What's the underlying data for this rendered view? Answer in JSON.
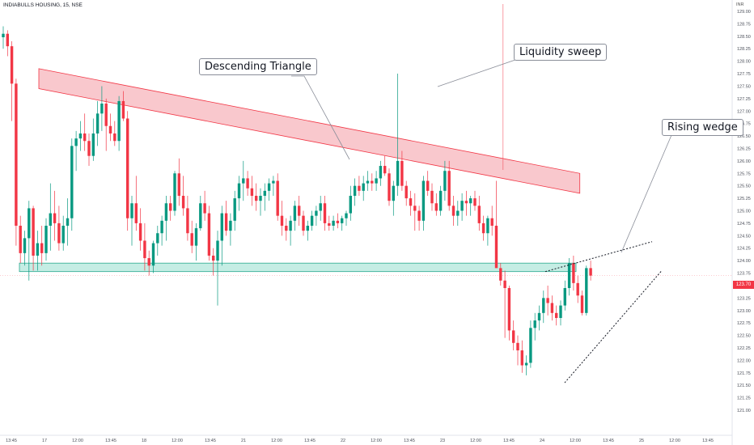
{
  "header": {
    "symbol": "INDIABULLS HOUSING, 15, NSE",
    "currency": "INR"
  },
  "last_price_label": "123.70",
  "annotations": {
    "descending_triangle": "Descending Triangle",
    "liquidity_sweep": "Liquidity sweep",
    "rising_wedge": "Rising wedge"
  },
  "colors": {
    "up": "#089981",
    "down": "#f23645",
    "resistance_fill": "#f7b5bc",
    "support_fill": "#b6e8dd",
    "support_border": "#2aa88f"
  },
  "chart_data": {
    "type": "candlestick",
    "title": "INDIABULLS HOUSING, 15, NSE",
    "ylim": [
      121.0,
      129.0
    ],
    "y_ticks": [
      "129.00",
      "128.75",
      "128.50",
      "128.25",
      "128.00",
      "127.75",
      "127.50",
      "127.25",
      "127.00",
      "126.75",
      "126.50",
      "126.25",
      "126.00",
      "125.75",
      "125.50",
      "125.25",
      "125.00",
      "124.75",
      "124.50",
      "124.25",
      "124.00",
      "123.75",
      "123.50",
      "123.25",
      "123.00",
      "122.75",
      "122.50",
      "122.25",
      "122.00",
      "121.75",
      "121.50",
      "121.25",
      "121.00"
    ],
    "x_ticks": [
      "13:45",
      "17",
      "12:00",
      "13:45",
      "18",
      "12:00",
      "13:45",
      "21",
      "12:00",
      "13:45",
      "22",
      "12:00",
      "13:45",
      "23",
      "12:00",
      "13:45",
      "24",
      "12:00",
      "13:45",
      "25",
      "12:00",
      "13:45"
    ],
    "last_price": 123.7,
    "candles": [
      [
        128.48,
        128.7,
        128.25,
        128.55
      ],
      [
        128.55,
        128.62,
        128.1,
        128.3
      ],
      [
        128.3,
        128.4,
        126.8,
        127.55
      ],
      [
        127.55,
        127.65,
        124.3,
        124.7
      ],
      [
        124.7,
        124.9,
        123.95,
        124.15
      ],
      [
        124.15,
        124.6,
        123.9,
        124.45
      ],
      [
        124.45,
        125.2,
        123.6,
        125.05
      ],
      [
        125.05,
        125.1,
        123.8,
        124.1
      ],
      [
        124.1,
        124.6,
        123.8,
        124.35
      ],
      [
        124.35,
        124.7,
        123.9,
        124.15
      ],
      [
        124.15,
        124.85,
        124.0,
        124.7
      ],
      [
        124.7,
        125.55,
        124.2,
        124.95
      ],
      [
        124.95,
        125.4,
        124.4,
        124.75
      ],
      [
        124.75,
        125.1,
        124.2,
        124.35
      ],
      [
        124.35,
        124.9,
        124.2,
        124.7
      ],
      [
        124.7,
        125.25,
        124.3,
        124.85
      ],
      [
        124.85,
        126.45,
        124.6,
        126.3
      ],
      [
        126.3,
        126.6,
        125.8,
        126.45
      ],
      [
        126.45,
        126.8,
        126.2,
        126.55
      ],
      [
        126.55,
        126.95,
        126.2,
        126.4
      ],
      [
        126.4,
        126.55,
        125.9,
        126.1
      ],
      [
        126.1,
        126.85,
        126.0,
        126.55
      ],
      [
        126.55,
        127.2,
        126.3,
        126.95
      ],
      [
        126.95,
        127.5,
        126.6,
        127.15
      ],
      [
        127.15,
        127.25,
        126.2,
        126.7
      ],
      [
        126.7,
        126.95,
        126.4,
        126.55
      ],
      [
        126.55,
        126.8,
        126.3,
        126.4
      ],
      [
        126.4,
        127.3,
        126.2,
        127.2
      ],
      [
        127.2,
        127.4,
        126.8,
        126.85
      ],
      [
        126.85,
        127.0,
        124.6,
        124.85
      ],
      [
        124.85,
        125.3,
        124.3,
        125.15
      ],
      [
        125.15,
        125.7,
        124.6,
        124.75
      ],
      [
        124.75,
        125.05,
        124.2,
        124.4
      ],
      [
        124.4,
        124.75,
        123.8,
        124.05
      ],
      [
        124.05,
        124.2,
        123.7,
        123.9
      ],
      [
        123.9,
        124.4,
        123.75,
        124.35
      ],
      [
        124.35,
        124.7,
        124.1,
        124.55
      ],
      [
        124.55,
        124.9,
        124.3,
        124.8
      ],
      [
        124.8,
        125.3,
        124.4,
        125.15
      ],
      [
        125.15,
        125.3,
        124.8,
        125.0
      ],
      [
        125.0,
        125.8,
        124.9,
        125.75
      ],
      [
        125.75,
        126.05,
        125.1,
        125.3
      ],
      [
        125.3,
        125.7,
        124.9,
        125.05
      ],
      [
        125.05,
        125.3,
        124.4,
        124.55
      ],
      [
        124.55,
        124.8,
        124.15,
        124.3
      ],
      [
        124.3,
        124.75,
        124.0,
        124.65
      ],
      [
        124.65,
        125.3,
        124.6,
        125.15
      ],
      [
        125.15,
        125.4,
        124.8,
        124.95
      ],
      [
        124.95,
        125.1,
        124.0,
        124.1
      ],
      [
        124.1,
        124.25,
        123.7,
        124.0
      ],
      [
        124.0,
        124.6,
        123.1,
        124.4
      ],
      [
        124.4,
        125.1,
        123.9,
        124.95
      ],
      [
        124.95,
        125.2,
        124.5,
        124.6
      ],
      [
        124.6,
        124.95,
        124.3,
        124.8
      ],
      [
        124.8,
        125.4,
        124.6,
        125.25
      ],
      [
        125.25,
        125.7,
        125.0,
        125.55
      ],
      [
        125.55,
        126.0,
        125.2,
        125.65
      ],
      [
        125.65,
        125.8,
        125.3,
        125.45
      ],
      [
        125.45,
        125.7,
        125.1,
        125.3
      ],
      [
        125.3,
        125.55,
        125.0,
        125.2
      ],
      [
        125.2,
        125.45,
        124.9,
        125.3
      ],
      [
        125.3,
        125.55,
        125.0,
        125.4
      ],
      [
        125.4,
        125.65,
        125.2,
        125.55
      ],
      [
        125.55,
        125.7,
        125.3,
        125.6
      ],
      [
        125.6,
        125.75,
        124.8,
        124.9
      ],
      [
        124.9,
        125.2,
        124.5,
        124.7
      ],
      [
        124.7,
        124.85,
        124.4,
        124.6
      ],
      [
        124.6,
        124.9,
        124.3,
        124.8
      ],
      [
        124.8,
        125.2,
        124.6,
        125.1
      ],
      [
        125.1,
        125.3,
        124.7,
        124.9
      ],
      [
        124.9,
        125.0,
        124.5,
        124.6
      ],
      [
        124.6,
        124.8,
        124.4,
        124.7
      ],
      [
        124.7,
        125.0,
        124.6,
        124.9
      ],
      [
        124.9,
        125.1,
        124.7,
        125.0
      ],
      [
        125.0,
        125.3,
        124.8,
        125.15
      ],
      [
        125.15,
        125.3,
        124.6,
        124.75
      ],
      [
        124.75,
        124.9,
        124.6,
        124.7
      ],
      [
        124.7,
        124.9,
        124.6,
        124.8
      ],
      [
        124.8,
        124.95,
        124.65,
        124.75
      ],
      [
        124.75,
        124.9,
        124.6,
        124.85
      ],
      [
        124.85,
        125.0,
        124.7,
        124.95
      ],
      [
        124.95,
        125.5,
        124.8,
        125.3
      ],
      [
        125.3,
        125.65,
        125.1,
        125.5
      ],
      [
        125.5,
        125.7,
        125.3,
        125.4
      ],
      [
        125.4,
        125.7,
        125.2,
        125.55
      ],
      [
        125.55,
        125.8,
        125.4,
        125.6
      ],
      [
        125.6,
        125.75,
        125.4,
        125.55
      ],
      [
        125.55,
        125.8,
        125.4,
        125.65
      ],
      [
        125.65,
        126.0,
        125.5,
        125.9
      ],
      [
        125.9,
        126.1,
        125.7,
        125.75
      ],
      [
        125.75,
        125.85,
        125.1,
        125.2
      ],
      [
        125.2,
        125.6,
        124.9,
        125.5
      ],
      [
        125.5,
        127.75,
        125.3,
        126.0
      ],
      [
        126.0,
        126.2,
        125.4,
        125.5
      ],
      [
        125.5,
        125.6,
        125.1,
        125.25
      ],
      [
        125.25,
        125.4,
        124.9,
        125.1
      ],
      [
        125.1,
        125.35,
        124.6,
        125.0
      ],
      [
        125.0,
        125.1,
        124.6,
        124.8
      ],
      [
        124.8,
        125.7,
        124.6,
        125.6
      ],
      [
        125.6,
        125.8,
        125.3,
        125.4
      ],
      [
        125.4,
        125.55,
        125.0,
        125.15
      ],
      [
        125.15,
        125.35,
        124.9,
        125.0
      ],
      [
        125.0,
        125.5,
        124.9,
        125.4
      ],
      [
        125.4,
        126.0,
        125.2,
        125.8
      ],
      [
        125.8,
        126.0,
        125.0,
        125.1
      ],
      [
        125.1,
        125.3,
        124.7,
        124.9
      ],
      [
        124.9,
        125.2,
        124.7,
        125.0
      ],
      [
        125.0,
        125.35,
        124.8,
        125.2
      ],
      [
        125.2,
        125.4,
        124.9,
        125.15
      ],
      [
        125.15,
        125.3,
        124.9,
        125.25
      ],
      [
        125.25,
        125.4,
        125.0,
        125.1
      ],
      [
        125.1,
        125.3,
        124.6,
        124.75
      ],
      [
        124.75,
        124.9,
        124.4,
        124.55
      ],
      [
        124.55,
        124.9,
        124.3,
        124.85
      ],
      [
        124.85,
        125.1,
        124.5,
        124.7
      ],
      [
        124.7,
        125.6,
        123.9,
        123.85
      ],
      [
        123.85,
        123.95,
        123.5,
        123.6
      ],
      [
        123.6,
        123.8,
        122.45,
        123.45
      ],
      [
        123.45,
        123.5,
        122.4,
        122.6
      ],
      [
        122.6,
        122.8,
        122.2,
        122.35
      ],
      [
        122.35,
        122.5,
        121.9,
        122.2
      ],
      [
        122.2,
        122.4,
        121.75,
        121.9
      ],
      [
        121.9,
        122.1,
        121.7,
        121.95
      ],
      [
        121.95,
        122.8,
        121.85,
        122.65
      ],
      [
        122.65,
        122.95,
        122.4,
        122.8
      ],
      [
        122.8,
        123.1,
        122.6,
        122.95
      ],
      [
        122.95,
        123.4,
        122.75,
        123.25
      ],
      [
        123.25,
        123.5,
        122.9,
        123.15
      ],
      [
        123.15,
        123.3,
        122.8,
        122.95
      ],
      [
        122.95,
        123.1,
        122.7,
        122.85
      ],
      [
        122.85,
        123.2,
        122.7,
        123.1
      ],
      [
        123.1,
        123.6,
        123.0,
        123.45
      ],
      [
        123.45,
        124.05,
        123.3,
        123.95
      ],
      [
        123.95,
        124.1,
        123.4,
        123.55
      ],
      [
        123.55,
        123.7,
        123.15,
        123.3
      ],
      [
        123.3,
        123.4,
        122.9,
        122.95
      ],
      [
        122.95,
        123.9,
        122.9,
        123.85
      ],
      [
        123.85,
        124.0,
        123.6,
        123.7
      ]
    ],
    "patterns": {
      "resistance_band": {
        "start": [
          0,
          127.65
        ],
        "end": [
          149,
          125.55
        ],
        "thickness": 0.4,
        "label": "Descending Triangle"
      },
      "support_zone": {
        "x_start": 1,
        "x_end": 149,
        "top": 123.95,
        "bottom": 123.78
      },
      "liquidity_sweep": {
        "index": 116,
        "label": "Liquidity sweep"
      },
      "rising_wedge": {
        "upper": [
          [
            141.5,
            123.78
          ],
          [
            159,
            124.38
          ]
        ],
        "lower": [
          [
            147,
            121.55
          ],
          [
            164,
            123.8
          ]
        ],
        "label": "Rising wedge"
      }
    }
  }
}
